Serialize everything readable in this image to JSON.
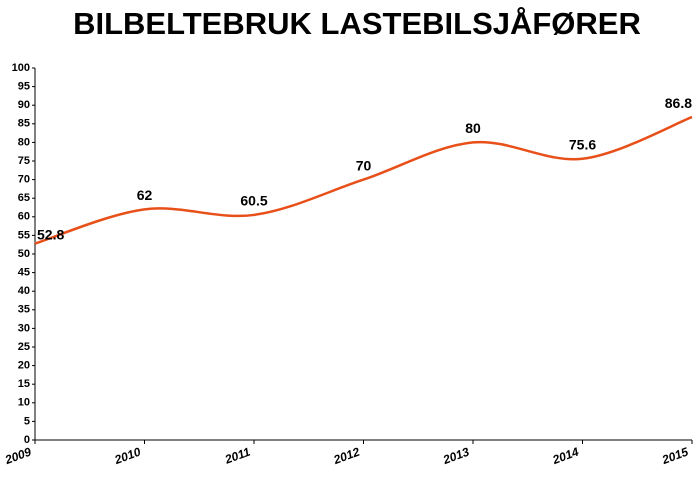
{
  "chart_data": {
    "type": "line",
    "title": "BILBELTEBRUK LASTEBILSJÅFØRER",
    "x": [
      2009,
      2010,
      2011,
      2012,
      2013,
      2014,
      2015
    ],
    "values": [
      52.8,
      62,
      60.5,
      70,
      80,
      75.6,
      86.8
    ],
    "color": "#e8501a",
    "smooth": true,
    "xlim": [
      2009,
      2015
    ],
    "xticks": [
      2009,
      2010,
      2011,
      2012,
      2013,
      2014,
      2015
    ],
    "ylim": [
      0,
      100
    ],
    "yticks": [
      0,
      5,
      10,
      15,
      20,
      25,
      30,
      35,
      40,
      45,
      50,
      55,
      60,
      65,
      70,
      75,
      80,
      85,
      90,
      95,
      100
    ],
    "grid": false
  }
}
